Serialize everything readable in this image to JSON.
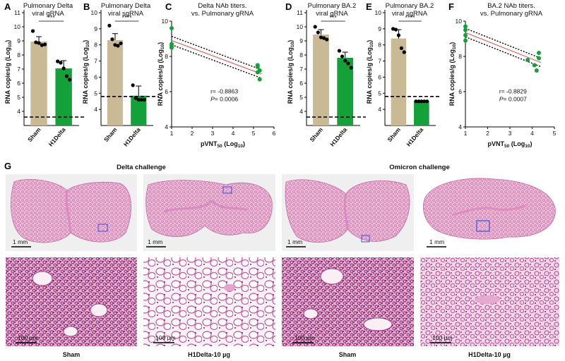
{
  "colors": {
    "sham": "#c9b994",
    "h1delta": "#14a13a",
    "fit": "#d9534f",
    "lung": "#e7a9cf",
    "tissue": "#b0508f"
  },
  "panels": [
    {
      "letter": "A",
      "title1": "Pulmonary Delta",
      "title2": "viral gRNA"
    },
    {
      "letter": "B",
      "title1": "Pulmonary Delta",
      "title2": "viral sgRNA"
    },
    {
      "letter": "C",
      "title1": "Delta NAb titers.",
      "title2": "vs. Pulmonary gRNA"
    },
    {
      "letter": "D",
      "title1": "Pulmonary BA.2",
      "title2": "viral gRNA"
    },
    {
      "letter": "E",
      "title1": "Pulmonary BA.2",
      "title2": "viral sgRNA"
    },
    {
      "letter": "F",
      "title1": "BA.2 NAb titers.",
      "title2": "vs. Pulmonary gRNA"
    }
  ],
  "axis": {
    "ylabel_main": "RNA copies/g (Log",
    "ylabel_sub": "10",
    "ylabel_end": ")",
    "xlabel_main": "pVNT",
    "xlabel_sub1": "50",
    "xlabel_mid": " (Log",
    "xlabel_sub2": "10",
    "xlabel_end": ")",
    "categories": [
      "Sham",
      "H1Delta"
    ]
  },
  "chart_data": [
    {
      "panel": "A",
      "type": "bar",
      "categories": [
        "Sham",
        "H1Delta"
      ],
      "series": [
        {
          "values": [
            8.95,
            7.05
          ],
          "errors": [
            0.35,
            0.55
          ]
        }
      ],
      "points": [
        [
          9.7,
          8.9,
          8.85,
          8.7,
          8.75
        ],
        [
          7.55,
          7.45,
          7.05,
          6.5,
          6.25
        ]
      ],
      "ylim": [
        3,
        11
      ],
      "yticks": [
        4,
        5,
        6,
        7,
        8,
        9,
        10,
        11
      ],
      "lod": 3.6,
      "significance": "***"
    },
    {
      "panel": "B",
      "type": "bar",
      "categories": [
        "Sham",
        "H1Delta"
      ],
      "series": [
        {
          "values": [
            8.3,
            4.85
          ],
          "errors": [
            0.4,
            0.6
          ]
        }
      ],
      "points": [
        [
          9.2,
          8.35,
          8.0,
          7.95,
          8.1
        ],
        [
          5.5,
          4.7,
          4.6,
          4.6,
          4.6
        ]
      ],
      "ylim": [
        3,
        10
      ],
      "yticks": [
        4,
        5,
        6,
        7,
        8,
        9,
        10
      ],
      "lod": 4.8,
      "significance": "****"
    },
    {
      "panel": "C",
      "type": "scatter",
      "x": [
        1.0,
        1.0,
        1.0,
        1.0,
        5.2,
        5.2,
        5.3,
        5.3,
        5.2
      ],
      "y": [
        9.6,
        8.7,
        8.6,
        8.5,
        7.5,
        7.4,
        7.2,
        6.7,
        7.1
      ],
      "fit": {
        "x0": 1.0,
        "y0": 8.9,
        "x1": 5.4,
        "y1": 7.0
      },
      "xlim": [
        1,
        6
      ],
      "ylim": [
        4,
        10
      ],
      "xticks": [
        1,
        2,
        3,
        4,
        5,
        6
      ],
      "yticks": [
        4,
        6,
        8,
        10
      ],
      "r": "r= -0.8863",
      "p_label": "P",
      "p_value": "= 0.0006"
    },
    {
      "panel": "D",
      "type": "bar",
      "categories": [
        "Sham",
        "H1Delta"
      ],
      "series": [
        {
          "values": [
            9.45,
            7.8
          ],
          "errors": [
            0.35,
            0.4
          ]
        }
      ],
      "points": [
        [
          10.0,
          9.6,
          9.25,
          9.2,
          9.1
        ],
        [
          8.3,
          7.9,
          7.6,
          7.4,
          7.1
        ]
      ],
      "ylim": [
        3,
        11
      ],
      "yticks": [
        4,
        5,
        6,
        7,
        8,
        9,
        10,
        11
      ],
      "lod": 3.6,
      "significance": "***"
    },
    {
      "panel": "E",
      "type": "bar",
      "categories": [
        "Sham",
        "H1Delta"
      ],
      "series": [
        {
          "values": [
            8.4,
            4.5
          ],
          "errors": [
            0.55,
            0.0
          ]
        }
      ],
      "points": [
        [
          9.0,
          8.95,
          8.6,
          7.8,
          7.55
        ],
        [
          4.5,
          4.5,
          4.5,
          4.5,
          4.5
        ]
      ],
      "ylim": [
        3,
        10
      ],
      "yticks": [
        4,
        5,
        6,
        7,
        8,
        9,
        10
      ],
      "lod": 4.8,
      "significance": "****"
    },
    {
      "panel": "F",
      "type": "scatter",
      "x": [
        1.0,
        1.0,
        1.0,
        1.0,
        3.8,
        4.1,
        4.2,
        4.3,
        4.3
      ],
      "y": [
        9.7,
        9.5,
        9.2,
        8.9,
        7.8,
        7.5,
        7.2,
        7.9,
        8.2
      ],
      "fit": {
        "x0": 1.0,
        "y0": 9.35,
        "x1": 4.4,
        "y1": 7.65
      },
      "xlim": [
        1,
        5
      ],
      "ylim": [
        4,
        10
      ],
      "xticks": [
        1,
        2,
        3,
        4,
        5
      ],
      "yticks": [
        4,
        6,
        8,
        10
      ],
      "r": "r= -0.8829",
      "p_label": "P",
      "p_value": "= 0.0007"
    }
  ],
  "histology": {
    "letter": "G",
    "challenges": [
      "Delta challenge",
      "Omicron challenge"
    ],
    "overview_scale": "1 mm",
    "zoom_scale": "100 µm",
    "captions": [
      "Sham",
      "H1Delta-10 µg",
      "Sham",
      "H1Delta-10 µg"
    ]
  }
}
